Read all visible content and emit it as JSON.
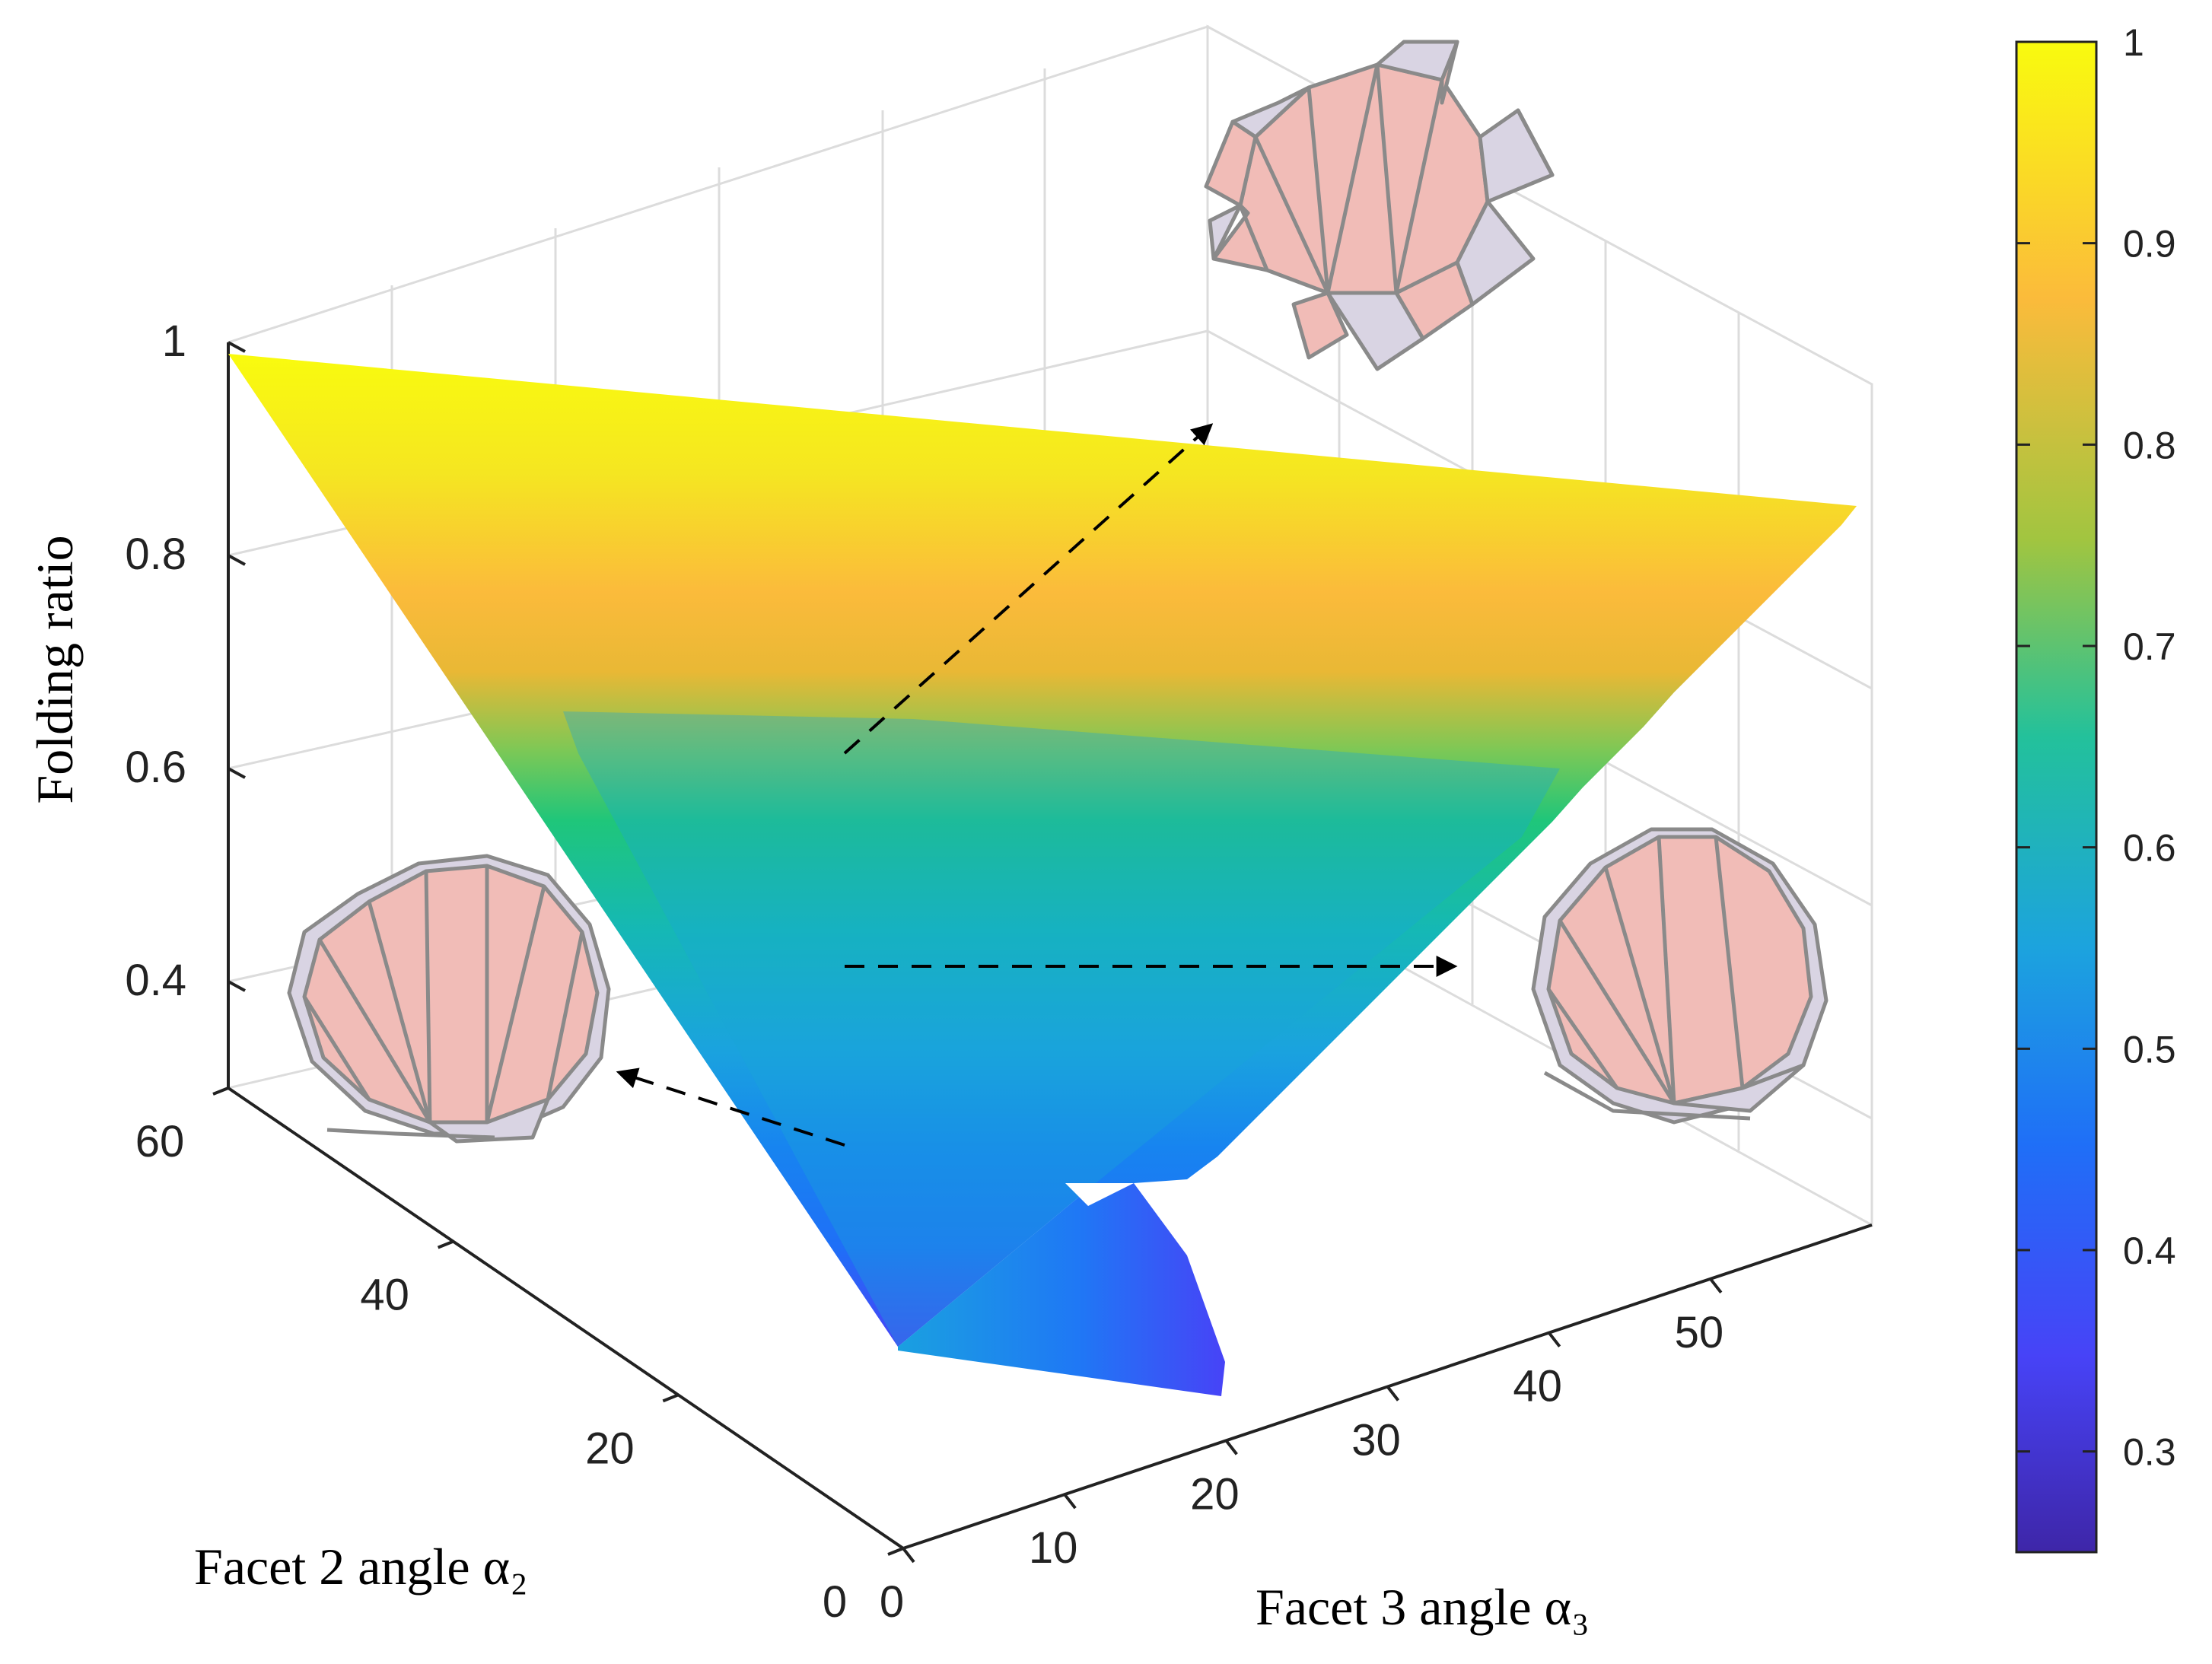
{
  "chart_data": {
    "type": "surface",
    "title": "",
    "xlabel": "Facet 3 angle α₃",
    "ylabel": "Facet 2 angle α₂",
    "zlabel": "Folding ratio",
    "xlim": [
      0,
      60
    ],
    "ylim": [
      0,
      60
    ],
    "zlim": [
      0.3,
      1
    ],
    "x_ticks": [
      "0",
      "10",
      "20",
      "30",
      "40",
      "50"
    ],
    "y_ticks": [
      "0",
      "20",
      "40",
      "60"
    ],
    "z_ticks": [
      "0.4",
      "0.6",
      "0.8",
      "1"
    ],
    "grid": true,
    "colormap": "parula",
    "colorbar": {
      "ticks": [
        "0.3",
        "0.4",
        "0.5",
        "0.6",
        "0.7",
        "0.8",
        "0.9",
        "1"
      ],
      "range": [
        0.25,
        1
      ],
      "colors": [
        "#3e26a8",
        "#4743f7",
        "#1f6ff7",
        "#1ca3de",
        "#23c19b",
        "#a1c540",
        "#fbbb3b",
        "#f9fb0e"
      ]
    },
    "surface_points": [
      {
        "x": 0,
        "y": 60,
        "z": 1.0
      },
      {
        "x": 60,
        "y": 0,
        "z": 0.98
      },
      {
        "x": 30,
        "y": 30,
        "z": 0.66
      },
      {
        "x": 10,
        "y": 10,
        "z": 0.42
      },
      {
        "x": 45,
        "y": 14,
        "z": 0.42
      },
      {
        "x": 15,
        "y": 5,
        "z": 0.27
      },
      {
        "x": 23,
        "y": 2,
        "z": 0.24
      }
    ],
    "annotations": [
      {
        "label": "open-configuration",
        "z": 0.96
      },
      {
        "label": "folded-configuration-right",
        "z": 0.45
      },
      {
        "label": "folded-configuration-left",
        "z": 0.41
      }
    ]
  }
}
